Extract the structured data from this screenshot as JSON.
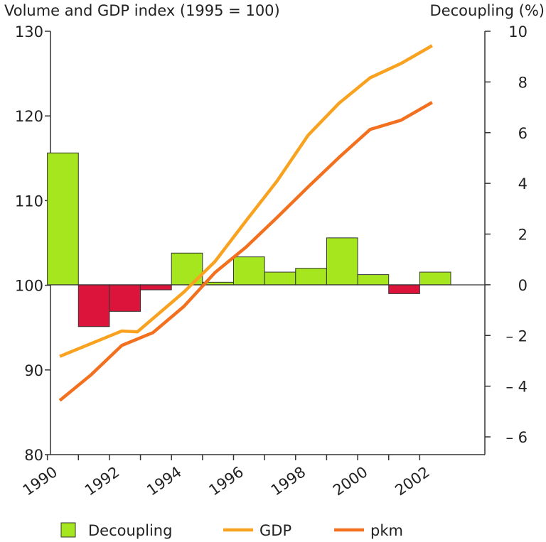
{
  "chart_data": {
    "type": "bar+line",
    "left_axis_title": "Volume and GDP index (1995 = 100)",
    "right_axis_title": "Decoupling (%)",
    "y_left": {
      "min": 80,
      "max": 130,
      "ticks": [
        "80",
        "90",
        "100",
        "110",
        "120",
        "130"
      ]
    },
    "y_right": {
      "min": -6.7,
      "max": 10,
      "ticks": [
        "– 6",
        "– 4",
        "– 2",
        "0",
        "2",
        "4",
        "6",
        "8",
        "10"
      ],
      "tick_values": [
        -6,
        -4,
        -2,
        0,
        2,
        4,
        6,
        8,
        10
      ]
    },
    "x_tick_labels": [
      "1990",
      "1992",
      "1994",
      "1996",
      "1998",
      "2000",
      "2002"
    ],
    "x_tick_years": [
      1990,
      1992,
      1994,
      1996,
      1998,
      2000,
      2002
    ],
    "x_domain": [
      1989.6,
      2003.6
    ],
    "bars": {
      "name": "Decoupling",
      "years": [
        1990,
        1991,
        1992,
        1993,
        1994,
        1995,
        1996,
        1997,
        1998,
        1999,
        2000,
        2001,
        2002
      ],
      "values": [
        5.2,
        -1.65,
        -1.05,
        -0.2,
        1.25,
        0.1,
        1.1,
        0.5,
        0.65,
        1.85,
        0.4,
        -0.35,
        0.5
      ],
      "positive_color": "#a6e61e",
      "negative_color": "#dc143c"
    },
    "series": [
      {
        "name": "GDP",
        "color": "#f9a21f",
        "x": [
          1989.9,
          1990.9,
          1991.9,
          1992.4,
          1993.9,
          1994.9,
          1995.9,
          1996.9,
          1997.9,
          1998.9,
          1999.9,
          2000.9,
          2001.9
        ],
        "y": [
          91.6,
          93.1,
          94.6,
          94.5,
          99.2,
          102.8,
          107.6,
          112.3,
          117.7,
          121.5,
          124.5,
          126.2,
          128.3
        ]
      },
      {
        "name": "pkm",
        "color": "#f2701e",
        "x": [
          1989.9,
          1990.9,
          1991.9,
          1992.9,
          1993.9,
          1994.9,
          1995.9,
          1996.9,
          1997.9,
          1998.9,
          1999.9,
          2000.9,
          2001.9
        ],
        "y": [
          86.4,
          89.4,
          92.9,
          94.4,
          97.5,
          101.5,
          104.5,
          108.0,
          111.6,
          115.1,
          118.4,
          119.5,
          121.6
        ]
      }
    ],
    "legend": {
      "position": "bottom",
      "items": [
        {
          "label": "Decoupling",
          "kind": "box",
          "color": "#a6e61e"
        },
        {
          "label": "GDP",
          "kind": "line",
          "color": "#f9a21f"
        },
        {
          "label": "pkm",
          "kind": "line",
          "color": "#f2701e"
        }
      ]
    }
  }
}
